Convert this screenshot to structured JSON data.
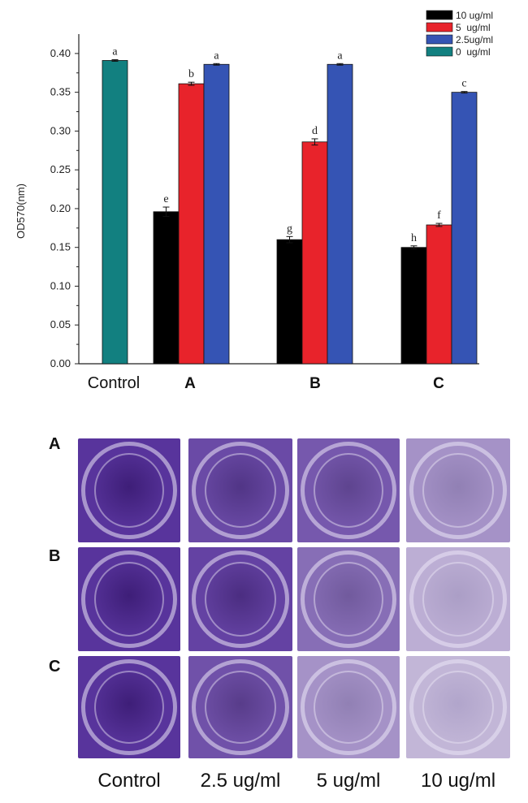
{
  "chart_data": {
    "type": "bar",
    "ylabel": "OD570(nm)",
    "ylim": [
      0,
      0.425
    ],
    "yticks": [
      "0.00",
      "0.05",
      "0.10",
      "0.15",
      "0.20",
      "0.25",
      "0.30",
      "0.35",
      "0.40"
    ],
    "legend_position": "top-right",
    "legend": [
      {
        "name": "10 ug/ml",
        "color": "#000000"
      },
      {
        "name": "5  ug/ml",
        "color": "#e8232b"
      },
      {
        "name": "2.5ug/ml",
        "color": "#3554b4"
      },
      {
        "name": "0  ug/ml",
        "color": "#128080"
      }
    ],
    "groups": [
      {
        "label": "Control",
        "bars": [
          {
            "series": "0  ug/ml",
            "value": 0.391,
            "err": 0.001,
            "sig": "a"
          }
        ]
      },
      {
        "label": "A",
        "bars": [
          {
            "series": "10 ug/ml",
            "value": 0.196,
            "err": 0.006,
            "sig": "e"
          },
          {
            "series": "5  ug/ml",
            "value": 0.361,
            "err": 0.002,
            "sig": "b"
          },
          {
            "series": "2.5ug/ml",
            "value": 0.386,
            "err": 0.001,
            "sig": "a"
          }
        ]
      },
      {
        "label": "B",
        "bars": [
          {
            "series": "10 ug/ml",
            "value": 0.16,
            "err": 0.004,
            "sig": "g"
          },
          {
            "series": "5  ug/ml",
            "value": 0.286,
            "err": 0.004,
            "sig": "d"
          },
          {
            "series": "2.5ug/ml",
            "value": 0.386,
            "err": 0.001,
            "sig": "a"
          }
        ]
      },
      {
        "label": "C",
        "bars": [
          {
            "series": "10 ug/ml",
            "value": 0.15,
            "err": 0.002,
            "sig": "h"
          },
          {
            "series": "5  ug/ml",
            "value": 0.179,
            "err": 0.002,
            "sig": "f"
          },
          {
            "series": "2.5ug/ml",
            "value": 0.35,
            "err": 0.001,
            "sig": "c"
          }
        ]
      }
    ]
  },
  "plates": {
    "rows": [
      "A",
      "B",
      "C"
    ],
    "columns": [
      "Control",
      "2.5 ug/ml",
      "5 ug/ml",
      "10 ug/ml"
    ],
    "stain_intensity": [
      [
        1.0,
        0.85,
        0.75,
        0.35
      ],
      [
        1.0,
        0.9,
        0.6,
        0.15
      ],
      [
        1.0,
        0.8,
        0.35,
        0.1
      ]
    ]
  }
}
